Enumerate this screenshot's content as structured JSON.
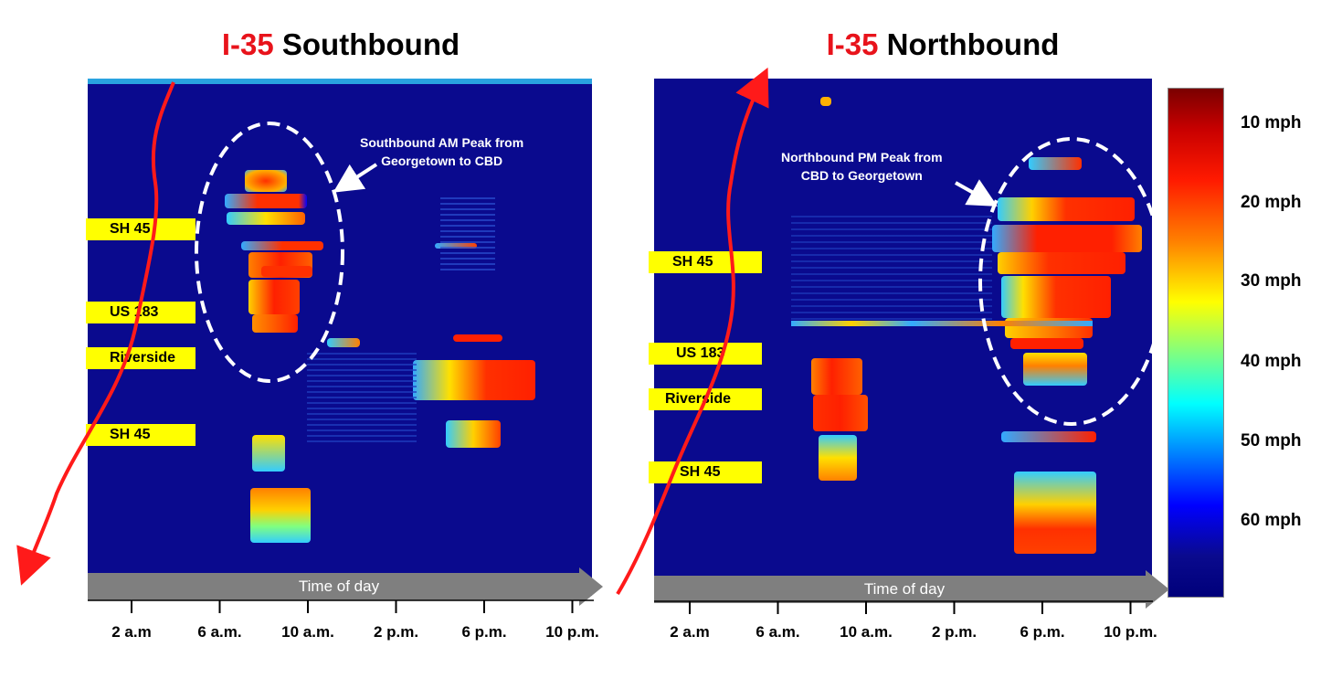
{
  "left": {
    "title_hwy": "I-35",
    "title_dir": "Southbound",
    "annotation_l1": "Southbound AM Peak from",
    "annotation_l2": "Georgetown to CBD",
    "roads": [
      "SH 45",
      "US 183",
      "Riverside",
      "SH 45"
    ],
    "arrow_label": "Time of day",
    "ticks": [
      "2 a.m",
      "6 a.m.",
      "10 a.m.",
      "2 p.m.",
      "6 p.m.",
      "10 p.m."
    ]
  },
  "right": {
    "title_hwy": "I-35",
    "title_dir": "Northbound",
    "annotation_l1": "Northbound PM Peak from",
    "annotation_l2": "CBD to Georgetown",
    "roads": [
      "SH 45",
      "US 183",
      "Riverside",
      "SH 45"
    ],
    "arrow_label": "Time of day",
    "ticks": [
      "2 a.m",
      "6 a.m.",
      "10 a.m.",
      "2 p.m.",
      "6 p.m.",
      "10 p.m."
    ]
  },
  "colorbar": {
    "labels": [
      "10 mph",
      "20 mph",
      "30 mph",
      "40 mph",
      "50 mph",
      "60 mph"
    ]
  },
  "colors": {
    "title_highway": "#e8131b",
    "road_label_bg": "#ffff00",
    "heatmap_bg": "#0a0a8e",
    "route_arrow": "#ff1a1a"
  },
  "chart_data": [
    {
      "type": "heatmap",
      "title": "I-35 Southbound",
      "xlabel": "Time of day",
      "x_tick_labels": [
        "2 a.m",
        "6 a.m.",
        "10 a.m.",
        "2 p.m.",
        "6 p.m.",
        "10 p.m."
      ],
      "y_labels": [
        "SH 45",
        "US 183",
        "Riverside",
        "SH 45"
      ],
      "value_unit": "mph",
      "annotations": [
        "Southbound AM Peak from Georgetown to CBD"
      ]
    },
    {
      "type": "heatmap",
      "title": "I-35 Northbound",
      "xlabel": "Time of day",
      "x_tick_labels": [
        "2 a.m",
        "6 a.m.",
        "10 a.m.",
        "2 p.m.",
        "6 p.m.",
        "10 p.m."
      ],
      "y_labels": [
        "SH 45",
        "US 183",
        "Riverside",
        "SH 45"
      ],
      "value_unit": "mph",
      "colorbar_labels": [
        "10 mph",
        "20 mph",
        "30 mph",
        "40 mph",
        "50 mph",
        "60 mph"
      ],
      "annotations": [
        "Northbound PM Peak from CBD to Georgetown"
      ]
    }
  ]
}
